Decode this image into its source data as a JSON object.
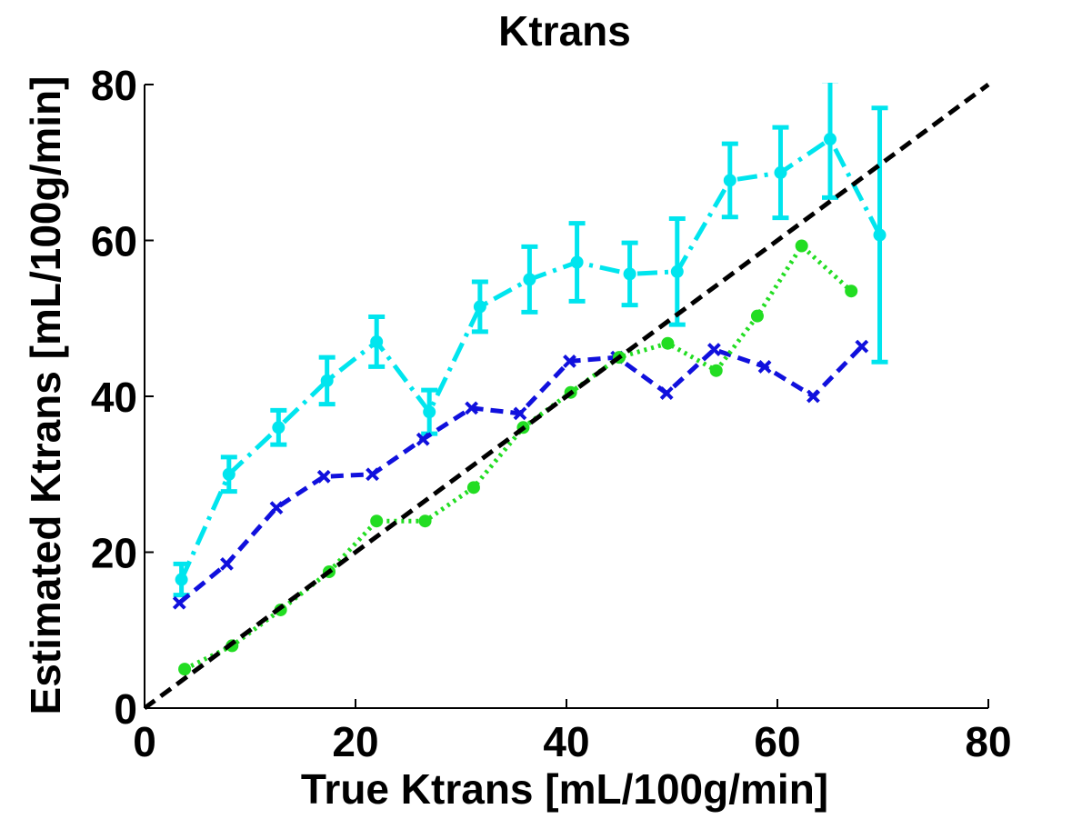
{
  "chart_data": {
    "type": "line",
    "title": "Ktrans",
    "xlabel": "True Ktrans [mL/100g/min]",
    "ylabel": "Estimated Ktrans [mL/100g/min]",
    "xlim": [
      0,
      80
    ],
    "ylim": [
      0,
      80
    ],
    "xticks": [
      0,
      20,
      40,
      60,
      80
    ],
    "yticks": [
      0,
      20,
      40,
      60,
      80
    ],
    "grid": false,
    "legend": "none",
    "identity_line": {
      "x": [
        0,
        80
      ],
      "y": [
        0,
        80
      ],
      "color": "#000000",
      "style": "dashed"
    },
    "series": [
      {
        "color": "#00e5ee",
        "style": "dashdot",
        "marker": "dot",
        "x": [
          3.5,
          8,
          12.7,
          17.3,
          22,
          27,
          31.8,
          36.5,
          41,
          46,
          50.5,
          55.5,
          60.3,
          65,
          69.7
        ],
        "y": [
          16.5,
          30,
          36,
          42,
          47,
          38,
          51.5,
          55,
          57.2,
          55.7,
          56,
          67.7,
          68.7,
          73,
          60.7
        ],
        "err": [
          2,
          2.2,
          2.2,
          3,
          3.2,
          2.8,
          3.2,
          4.2,
          5,
          4,
          6.8,
          4.7,
          5.8,
          7.5,
          16.3
        ]
      },
      {
        "color": "#1010dd",
        "style": "dashed",
        "marker": "x",
        "x": [
          3.3,
          7.8,
          12.5,
          17,
          21.6,
          26.4,
          31,
          35.6,
          40.3,
          44.8,
          49.5,
          54,
          58.8,
          63.4,
          68
        ],
        "y": [
          13.5,
          18.5,
          25.7,
          29.7,
          30,
          34.5,
          38.5,
          37.8,
          44.5,
          45,
          40.4,
          46,
          43.8,
          40,
          46.4
        ]
      },
      {
        "color": "#22dd22",
        "style": "dotted",
        "marker": "dot",
        "x": [
          3.8,
          8.3,
          12.9,
          17.5,
          22,
          26.6,
          31.2,
          35.9,
          40.4,
          45,
          49.6,
          54.2,
          58.1,
          62.3,
          67
        ],
        "y": [
          5,
          8,
          12.6,
          17.5,
          24,
          24,
          28.3,
          36,
          40.5,
          45,
          46.8,
          43.3,
          50.3,
          59.3,
          53.5
        ]
      }
    ]
  }
}
